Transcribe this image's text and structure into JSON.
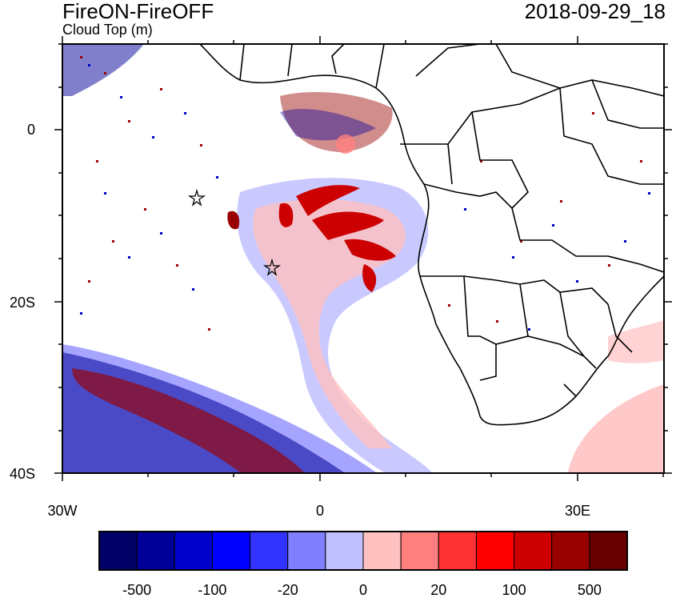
{
  "title_left": "FireON-FireOFF",
  "subtitle": "Cloud Top (m)",
  "title_right": "2018-09-29_18",
  "lat_labels": [
    "0",
    "20S",
    "40S"
  ],
  "lon_labels": [
    "30W",
    "0",
    "30E"
  ],
  "colorbar": {
    "colors": [
      "#000066",
      "#000099",
      "#0000cc",
      "#0000ff",
      "#3333ff",
      "#7f7fff",
      "#c0c0ff",
      "#ffc0c0",
      "#ff7f7f",
      "#ff3333",
      "#ff0000",
      "#cc0000",
      "#990000",
      "#660000"
    ],
    "labels": [
      "-500",
      "-100",
      "-20",
      "0",
      "20",
      "100",
      "500"
    ]
  },
  "markers": [
    "star",
    "star"
  ]
}
